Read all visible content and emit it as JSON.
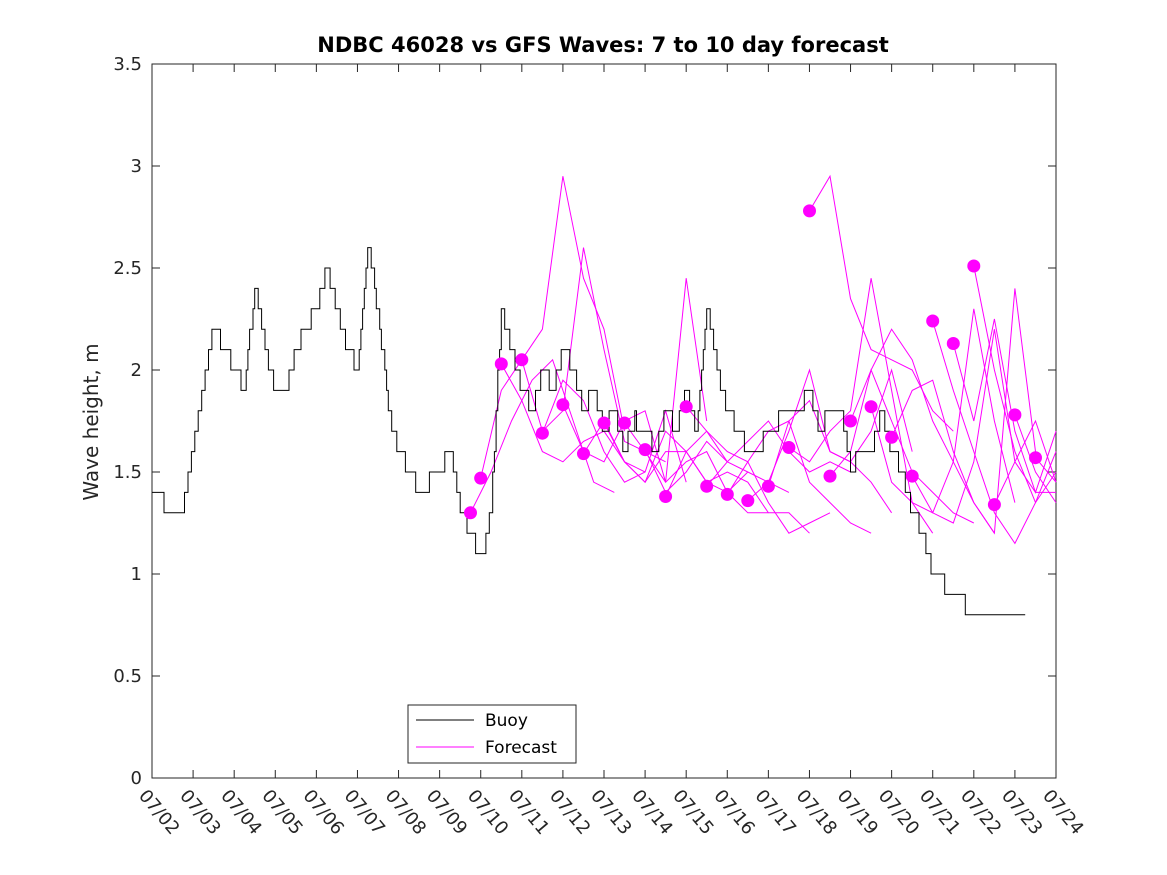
{
  "chart_data": {
    "type": "line",
    "title": "NDBC 46028 vs GFS Waves: 7 to 10 day forecast",
    "xlabel": "",
    "ylabel": "Wave height, m",
    "ylim": [
      0,
      3.5
    ],
    "xlim": [
      "07/02",
      "07/24"
    ],
    "grid": false,
    "legend_position": "bottom-center",
    "x_ticks": [
      "07/02",
      "07/03",
      "07/04",
      "07/05",
      "07/06",
      "07/07",
      "07/08",
      "07/09",
      "07/10",
      "07/11",
      "07/12",
      "07/13",
      "07/14",
      "07/15",
      "07/16",
      "07/17",
      "07/18",
      "07/19",
      "07/20",
      "07/21",
      "07/22",
      "07/23",
      "07/24"
    ],
    "y_ticks": [
      "0",
      "0.5",
      "1",
      "1.5",
      "2",
      "2.5",
      "3",
      "3.5"
    ],
    "colors": {
      "buoy": "#000000",
      "forecast": "#ff00ff"
    },
    "legend": [
      {
        "label": "Buoy",
        "color": "#000000"
      },
      {
        "label": "Forecast",
        "color": "#ff00ff"
      }
    ],
    "buoy": {
      "name": "Buoy",
      "x": [
        "07/02 00:00",
        "07/02 06:00",
        "07/02 12:00",
        "07/02 18:00",
        "07/03 00:00",
        "07/03 06:00",
        "07/03 12:00",
        "07/03 18:00",
        "07/04 00:00",
        "07/04 06:00",
        "07/04 12:00",
        "07/04 18:00",
        "07/05 00:00",
        "07/05 06:00",
        "07/05 12:00",
        "07/05 18:00",
        "07/06 00:00",
        "07/06 06:00",
        "07/06 12:00",
        "07/06 18:00",
        "07/07 00:00",
        "07/07 06:00",
        "07/07 12:00",
        "07/07 18:00",
        "07/08 00:00",
        "07/08 06:00",
        "07/08 12:00",
        "07/08 18:00",
        "07/09 00:00",
        "07/09 06:00",
        "07/09 12:00",
        "07/09 18:00",
        "07/10 00:00",
        "07/10 06:00",
        "07/10 12:00",
        "07/10 18:00",
        "07/11 00:00",
        "07/11 06:00",
        "07/11 12:00",
        "07/11 18:00",
        "07/12 00:00",
        "07/12 06:00",
        "07/12 12:00",
        "07/12 18:00",
        "07/13 00:00",
        "07/13 06:00",
        "07/13 12:00",
        "07/13 18:00",
        "07/14 00:00",
        "07/14 06:00",
        "07/14 12:00",
        "07/14 18:00",
        "07/15 00:00",
        "07/15 06:00",
        "07/15 12:00",
        "07/15 18:00",
        "07/16 00:00",
        "07/16 06:00",
        "07/16 12:00",
        "07/16 18:00",
        "07/17 00:00",
        "07/17 06:00",
        "07/17 12:00",
        "07/17 18:00",
        "07/18 00:00",
        "07/18 06:00",
        "07/18 12:00",
        "07/18 18:00",
        "07/19 00:00",
        "07/19 06:00",
        "07/19 12:00",
        "07/19 18:00",
        "07/20 00:00",
        "07/20 06:00",
        "07/20 12:00",
        "07/20 18:00",
        "07/21 00:00",
        "07/21 06:00",
        "07/21 12:00",
        "07/21 18:00",
        "07/22 00:00",
        "07/22 06:00",
        "07/22 12:00",
        "07/22 18:00",
        "07/23 00:00",
        "07/23 06:00"
      ],
      "values": [
        1.4,
        1.35,
        1.3,
        1.3,
        1.6,
        1.9,
        2.2,
        2.1,
        2.0,
        1.9,
        2.4,
        2.1,
        1.9,
        1.9,
        2.1,
        2.2,
        2.3,
        2.5,
        2.3,
        2.1,
        2.0,
        2.6,
        2.3,
        1.8,
        1.6,
        1.5,
        1.4,
        1.45,
        1.5,
        1.6,
        1.3,
        1.2,
        1.05,
        1.3,
        2.3,
        2.1,
        1.9,
        1.8,
        2.0,
        1.9,
        2.1,
        2.0,
        1.8,
        1.9,
        1.7,
        1.8,
        1.6,
        1.75,
        1.7,
        1.6,
        1.8,
        1.7,
        1.9,
        1.7,
        2.3,
        2.0,
        1.8,
        1.7,
        1.6,
        1.6,
        1.7,
        1.75,
        1.8,
        1.8,
        1.9,
        1.7,
        1.8,
        1.8,
        1.5,
        1.6,
        1.6,
        1.8,
        1.6,
        1.5,
        1.3,
        1.2,
        1.0,
        0.95,
        0.9,
        0.85,
        0.8,
        0.8,
        0.8,
        0.8,
        0.8,
        0.8
      ]
    },
    "forecast_lines": [
      {
        "x": [
          "07/09 18:00",
          "07/10 06:00",
          "07/10 18:00",
          "07/11 06:00",
          "07/11 18:00",
          "07/12 06:00",
          "07/12 18:00",
          "07/13 06:00"
        ],
        "values": [
          1.3,
          1.5,
          1.75,
          1.95,
          2.05,
          1.75,
          1.45,
          1.4
        ]
      },
      {
        "x": [
          "07/10 00:00",
          "07/10 12:00",
          "07/11 00:00",
          "07/11 12:00",
          "07/12 00:00",
          "07/12 12:00",
          "07/13 00:00",
          "07/13 12:00"
        ],
        "values": [
          1.47,
          1.9,
          2.05,
          2.2,
          2.95,
          2.45,
          2.2,
          1.7
        ]
      },
      {
        "x": [
          "07/10 12:00",
          "07/11 00:00",
          "07/11 12:00",
          "07/12 00:00",
          "07/12 12:00",
          "07/13 00:00",
          "07/13 12:00",
          "07/14 00:00"
        ],
        "values": [
          2.03,
          1.85,
          1.6,
          1.55,
          1.65,
          1.7,
          1.55,
          1.5
        ]
      },
      {
        "x": [
          "07/11 00:00",
          "07/11 12:00",
          "07/12 00:00",
          "07/12 12:00",
          "07/13 00:00",
          "07/13 12:00",
          "07/14 00:00",
          "07/14 12:00"
        ],
        "values": [
          2.05,
          1.7,
          1.8,
          2.6,
          2.1,
          1.65,
          1.6,
          1.55
        ]
      },
      {
        "x": [
          "07/11 12:00",
          "07/12 00:00",
          "07/12 12:00",
          "07/13 00:00",
          "07/13 12:00",
          "07/14 00:00",
          "07/14 12:00",
          "07/15 00:00"
        ],
        "values": [
          1.69,
          1.95,
          1.85,
          1.6,
          1.45,
          1.5,
          1.8,
          1.45
        ]
      },
      {
        "x": [
          "07/12 00:00",
          "07/12 12:00",
          "07/13 00:00",
          "07/13 12:00",
          "07/14 00:00",
          "07/14 12:00",
          "07/15 00:00",
          "07/15 12:00"
        ],
        "values": [
          1.83,
          1.6,
          1.55,
          1.75,
          1.8,
          1.45,
          2.45,
          1.75
        ]
      },
      {
        "x": [
          "07/12 12:00",
          "07/13 00:00",
          "07/13 12:00",
          "07/14 00:00",
          "07/14 12:00",
          "07/15 00:00",
          "07/15 12:00",
          "07/16 00:00"
        ],
        "values": [
          1.59,
          1.75,
          1.55,
          1.45,
          1.6,
          1.6,
          1.7,
          1.55
        ]
      },
      {
        "x": [
          "07/13 00:00",
          "07/13 12:00",
          "07/14 00:00",
          "07/14 12:00",
          "07/15 00:00",
          "07/15 12:00",
          "07/16 00:00",
          "07/16 12:00"
        ],
        "values": [
          1.74,
          1.55,
          1.45,
          1.7,
          1.6,
          1.45,
          1.4,
          1.5
        ]
      },
      {
        "x": [
          "07/13 12:00",
          "07/14 00:00",
          "07/14 12:00",
          "07/15 00:00",
          "07/15 12:00",
          "07/16 00:00",
          "07/16 12:00",
          "07/17 00:00"
        ],
        "values": [
          1.74,
          1.6,
          1.45,
          1.55,
          1.6,
          1.4,
          1.3,
          1.3
        ]
      },
      {
        "x": [
          "07/14 00:00",
          "07/14 12:00",
          "07/15 00:00",
          "07/15 12:00",
          "07/16 00:00",
          "07/16 12:00",
          "07/17 00:00",
          "07/17 12:00"
        ],
        "values": [
          1.61,
          1.4,
          1.5,
          1.65,
          1.55,
          1.5,
          1.45,
          1.4
        ]
      },
      {
        "x": [
          "07/14 12:00",
          "07/15 00:00",
          "07/15 12:00",
          "07/16 00:00",
          "07/16 12:00",
          "07/17 00:00",
          "07/17 12:00",
          "07/18 00:00"
        ],
        "values": [
          1.38,
          1.6,
          1.45,
          1.5,
          1.45,
          1.3,
          1.3,
          1.2
        ]
      },
      {
        "x": [
          "07/15 00:00",
          "07/15 12:00",
          "07/16 00:00",
          "07/16 12:00",
          "07/17 00:00",
          "07/17 12:00",
          "07/18 00:00",
          "07/18 12:00"
        ],
        "values": [
          1.82,
          1.7,
          1.6,
          1.55,
          1.35,
          1.2,
          1.25,
          1.3
        ]
      },
      {
        "x": [
          "07/15 12:00",
          "07/16 00:00",
          "07/16 12:00",
          "07/17 00:00",
          "07/17 12:00",
          "07/18 00:00",
          "07/18 12:00",
          "07/19 00:00"
        ],
        "values": [
          1.43,
          1.55,
          1.65,
          1.75,
          1.6,
          1.5,
          1.55,
          1.5
        ]
      },
      {
        "x": [
          "07/16 00:00",
          "07/16 12:00",
          "07/17 00:00",
          "07/17 12:00",
          "07/18 00:00",
          "07/18 12:00",
          "07/19 00:00",
          "07/19 12:00"
        ],
        "values": [
          1.39,
          1.55,
          1.7,
          1.75,
          1.45,
          1.35,
          1.25,
          1.2
        ]
      },
      {
        "x": [
          "07/16 12:00",
          "07/17 00:00",
          "07/17 12:00",
          "07/18 00:00",
          "07/18 12:00",
          "07/19 00:00",
          "07/19 12:00",
          "07/20 00:00"
        ],
        "values": [
          1.36,
          1.45,
          1.7,
          2.0,
          1.6,
          1.55,
          1.45,
          1.3
        ]
      },
      {
        "x": [
          "07/17 00:00",
          "07/17 12:00",
          "07/18 00:00",
          "07/18 12:00",
          "07/19 00:00",
          "07/19 12:00",
          "07/20 00:00",
          "07/20 12:00"
        ],
        "values": [
          1.43,
          1.75,
          1.85,
          1.6,
          1.55,
          1.7,
          2.0,
          1.6
        ]
      },
      {
        "x": [
          "07/17 12:00",
          "07/18 00:00",
          "07/18 12:00",
          "07/19 00:00",
          "07/19 12:00",
          "07/20 00:00",
          "07/20 12:00",
          "07/21 00:00"
        ],
        "values": [
          1.62,
          1.55,
          1.7,
          1.8,
          2.45,
          1.9,
          1.35,
          1.2
        ]
      },
      {
        "x": [
          "07/18 00:00",
          "07/18 12:00",
          "07/19 00:00",
          "07/19 12:00",
          "07/20 00:00",
          "07/20 12:00",
          "07/21 00:00",
          "07/21 12:00"
        ],
        "values": [
          2.78,
          2.95,
          2.35,
          2.1,
          2.05,
          2.0,
          1.8,
          1.7
        ]
      },
      {
        "x": [
          "07/18 12:00",
          "07/19 00:00",
          "07/19 12:00",
          "07/20 00:00",
          "07/20 12:00",
          "07/21 00:00",
          "07/21 12:00",
          "07/22 00:00"
        ],
        "values": [
          1.48,
          1.6,
          2.0,
          1.75,
          1.5,
          1.4,
          1.3,
          1.25
        ]
      },
      {
        "x": [
          "07/19 00:00",
          "07/19 12:00",
          "07/20 00:00",
          "07/20 12:00",
          "07/21 00:00",
          "07/21 12:00",
          "07/22 00:00",
          "07/22 12:00"
        ],
        "values": [
          1.75,
          2.0,
          2.2,
          2.05,
          1.75,
          1.55,
          1.35,
          1.2
        ]
      },
      {
        "x": [
          "07/19 12:00",
          "07/20 00:00",
          "07/20 12:00",
          "07/21 00:00",
          "07/21 12:00",
          "07/22 00:00",
          "07/22 12:00",
          "07/23 00:00"
        ],
        "values": [
          1.82,
          1.45,
          1.35,
          1.3,
          1.55,
          2.3,
          1.75,
          1.35
        ]
      },
      {
        "x": [
          "07/20 00:00",
          "07/20 12:00",
          "07/21 00:00",
          "07/21 12:00",
          "07/22 00:00",
          "07/22 12:00",
          "07/23 00:00",
          "07/23 12:00"
        ],
        "values": [
          1.67,
          1.9,
          1.95,
          1.6,
          1.35,
          1.2,
          2.4,
          1.6
        ]
      },
      {
        "x": [
          "07/20 12:00",
          "07/21 00:00",
          "07/21 12:00",
          "07/22 00:00",
          "07/22 12:00",
          "07/23 00:00",
          "07/23 12:00",
          "07/24 00:00"
        ],
        "values": [
          1.48,
          1.3,
          1.25,
          1.55,
          2.2,
          1.55,
          1.4,
          1.4
        ]
      },
      {
        "x": [
          "07/21 00:00",
          "07/21 12:00",
          "07/22 00:00",
          "07/22 12:00",
          "07/23 00:00",
          "07/23 12:00",
          "07/24 00:00"
        ],
        "values": [
          2.24,
          1.9,
          1.6,
          1.3,
          1.15,
          1.35,
          1.6
        ]
      },
      {
        "x": [
          "07/21 12:00",
          "07/22 00:00",
          "07/22 12:00",
          "07/23 00:00",
          "07/23 12:00",
          "07/24 00:00"
        ],
        "values": [
          2.13,
          1.75,
          2.25,
          1.7,
          1.4,
          1.7
        ]
      },
      {
        "x": [
          "07/22 00:00",
          "07/22 12:00",
          "07/23 00:00",
          "07/23 12:00",
          "07/24 00:00"
        ],
        "values": [
          2.51,
          2.0,
          1.6,
          1.35,
          1.5
        ]
      },
      {
        "x": [
          "07/22 12:00",
          "07/23 00:00",
          "07/23 12:00",
          "07/24 00:00"
        ],
        "values": [
          1.34,
          1.55,
          1.75,
          1.45
        ]
      },
      {
        "x": [
          "07/23 00:00",
          "07/23 12:00",
          "07/24 00:00"
        ],
        "values": [
          1.78,
          1.5,
          1.35
        ]
      },
      {
        "x": [
          "07/23 12:00",
          "07/24 00:00"
        ],
        "values": [
          1.57,
          1.45
        ]
      }
    ],
    "forecast_points": {
      "x": [
        "07/09 18:00",
        "07/10 00:00",
        "07/10 12:00",
        "07/11 00:00",
        "07/11 12:00",
        "07/12 00:00",
        "07/12 12:00",
        "07/13 00:00",
        "07/13 12:00",
        "07/14 00:00",
        "07/14 12:00",
        "07/15 00:00",
        "07/15 12:00",
        "07/16 00:00",
        "07/16 12:00",
        "07/17 00:00",
        "07/17 12:00",
        "07/18 00:00",
        "07/18 12:00",
        "07/19 00:00",
        "07/19 12:00",
        "07/20 00:00",
        "07/20 12:00",
        "07/21 00:00",
        "07/21 12:00",
        "07/22 00:00",
        "07/22 12:00",
        "07/23 00:00",
        "07/23 12:00"
      ],
      "values": [
        1.3,
        1.47,
        2.03,
        2.05,
        1.69,
        1.83,
        1.59,
        1.74,
        1.74,
        1.61,
        1.38,
        1.82,
        1.43,
        1.39,
        1.36,
        1.43,
        1.62,
        2.78,
        1.48,
        1.75,
        1.82,
        1.67,
        1.48,
        2.24,
        2.13,
        2.51,
        1.34,
        1.78,
        1.57
      ]
    }
  }
}
